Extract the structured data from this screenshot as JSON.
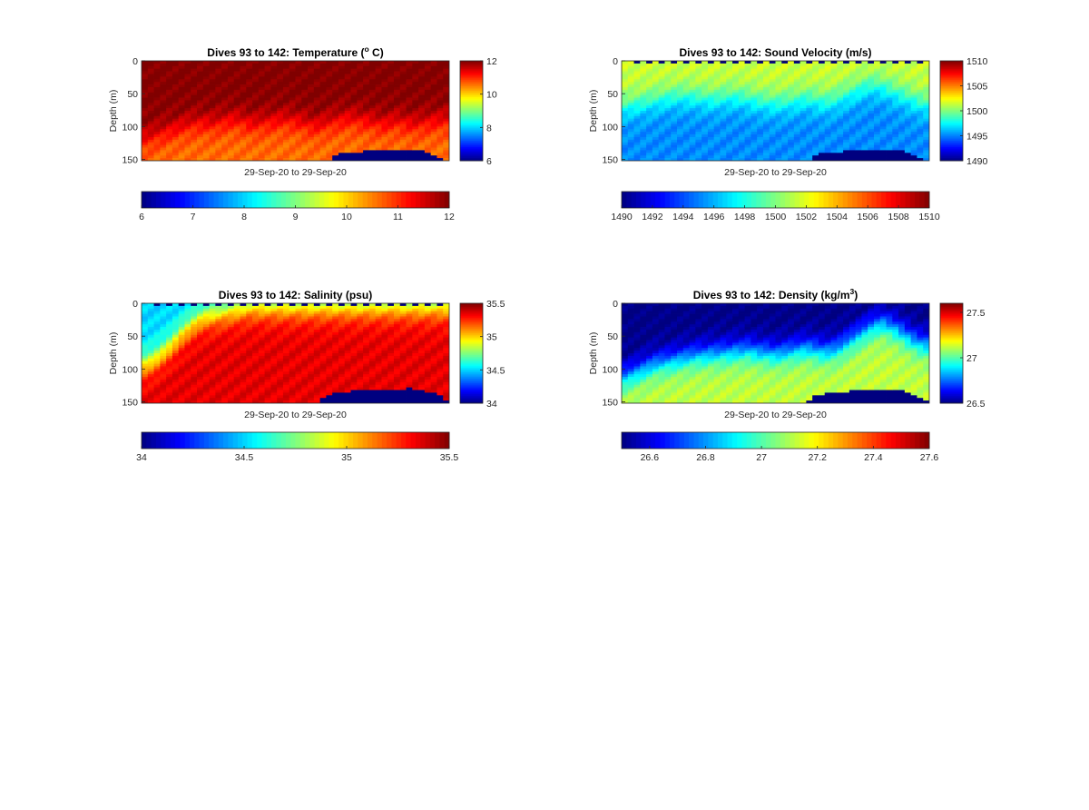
{
  "chart_data": [
    {
      "type": "heatmap",
      "title": "Dives 93 to 142: Temperature (",
      "title_sup": "o",
      "title_end": " C)",
      "xlabel": "29-Sep-20 to 29-Sep-20",
      "ylabel": "Depth (m)",
      "ylim": [
        0,
        152
      ],
      "yticks": [
        "0",
        "50",
        "100",
        "150"
      ],
      "ytick_values": [
        0,
        50,
        100,
        150
      ],
      "clim": [
        6,
        12
      ],
      "colorbar_right_ticks": [
        "6",
        "8",
        "10",
        "12"
      ],
      "colorbar_right_values": [
        6,
        8,
        10,
        12
      ],
      "colorbar_bottom_ticks": [
        "6",
        "7",
        "8",
        "9",
        "10",
        "11",
        "12"
      ],
      "colorbar_bottom_values": [
        6,
        7,
        8,
        9,
        10,
        11,
        12
      ],
      "colormap": "jet",
      "columns": 50,
      "surface_value": 12,
      "deep_value": 10.6,
      "thermocline_depth_m": [
        118,
        116,
        112,
        110,
        106,
        104,
        100,
        98,
        96,
        95,
        95,
        96,
        94,
        92,
        90,
        90,
        92,
        95,
        96,
        94,
        93,
        92,
        90,
        90,
        91,
        93,
        95,
        98,
        99,
        96,
        94,
        92,
        90,
        88,
        88,
        90,
        91,
        93,
        95,
        96,
        94,
        92,
        94,
        96,
        97,
        95,
        94,
        92,
        91,
        90
      ],
      "seafloor_depth_m": [
        200,
        200,
        200,
        200,
        200,
        200,
        200,
        200,
        200,
        200,
        200,
        200,
        200,
        200,
        200,
        200,
        200,
        200,
        200,
        200,
        200,
        200,
        200,
        200,
        200,
        200,
        200,
        200,
        200,
        200,
        200,
        145,
        142,
        140,
        139,
        139,
        138,
        138,
        137,
        137,
        137,
        137,
        136,
        136,
        137,
        138,
        140,
        143,
        147,
        152
      ],
      "surface_gap_columns": []
    },
    {
      "type": "heatmap",
      "title": "Dives 93 to 142: Sound Velocity (m/s)",
      "title_sup": "",
      "title_end": "",
      "xlabel": "29-Sep-20 to 29-Sep-20",
      "ylabel": "Depth (m)",
      "ylim": [
        0,
        152
      ],
      "yticks": [
        "0",
        "50",
        "100",
        "150"
      ],
      "ytick_values": [
        0,
        50,
        100,
        150
      ],
      "clim": [
        1490,
        1510
      ],
      "colorbar_right_ticks": [
        "1490",
        "1495",
        "1500",
        "1505",
        "1510"
      ],
      "colorbar_right_values": [
        1490,
        1495,
        1500,
        1505,
        1510
      ],
      "colorbar_bottom_ticks": [
        "1490",
        "1492",
        "1494",
        "1496",
        "1498",
        "1500",
        "1502",
        "1504",
        "1506",
        "1508",
        "1510"
      ],
      "colorbar_bottom_values": [
        1490,
        1492,
        1494,
        1496,
        1498,
        1500,
        1502,
        1504,
        1506,
        1508,
        1510
      ],
      "colormap": "jet",
      "columns": 50,
      "surface_value": 1501.5,
      "deep_value": 1495.2,
      "thermocline_depth_m": [
        70,
        68,
        66,
        64,
        62,
        60,
        58,
        56,
        55,
        54,
        54,
        55,
        56,
        57,
        58,
        58,
        56,
        55,
        55,
        56,
        58,
        60,
        62,
        63,
        64,
        64,
        63,
        62,
        60,
        58,
        58,
        60,
        62,
        62,
        60,
        56,
        52,
        48,
        44,
        40,
        38,
        38,
        40,
        44,
        48,
        52,
        56,
        60,
        64,
        66
      ],
      "seafloor_depth_m": [
        200,
        200,
        200,
        200,
        200,
        200,
        200,
        200,
        200,
        200,
        200,
        200,
        200,
        200,
        200,
        200,
        200,
        200,
        200,
        200,
        200,
        200,
        200,
        200,
        200,
        200,
        200,
        200,
        200,
        200,
        200,
        145,
        142,
        140,
        139,
        139,
        138,
        138,
        137,
        137,
        137,
        137,
        136,
        136,
        137,
        138,
        140,
        143,
        147,
        152
      ],
      "surface_gap_columns": [
        2,
        4,
        6,
        8,
        10,
        12,
        14,
        16,
        18,
        20,
        22,
        24,
        26,
        28,
        30,
        32,
        34,
        36,
        38,
        40,
        42,
        44,
        46,
        48
      ]
    },
    {
      "type": "heatmap",
      "title": "Dives 93 to 142: Salinity (psu)",
      "title_sup": "",
      "title_end": "",
      "xlabel": "29-Sep-20 to 29-Sep-20",
      "ylabel": "Depth (m)",
      "ylim": [
        0,
        152
      ],
      "yticks": [
        "0",
        "50",
        "100",
        "150"
      ],
      "ytick_values": [
        0,
        50,
        100,
        150
      ],
      "clim": [
        34,
        35.5
      ],
      "colorbar_right_ticks": [
        "34",
        "34.5",
        "35",
        "35.5"
      ],
      "colorbar_right_values": [
        34,
        34.5,
        35,
        35.5
      ],
      "colorbar_bottom_ticks": [
        "34",
        "34.5",
        "35",
        "35.5"
      ],
      "colorbar_bottom_values": [
        34,
        34.5,
        35,
        35.5
      ],
      "colormap": "jet",
      "columns": 50,
      "surface_value": 34.5,
      "deep_value": 35.35,
      "thermocline_depth_m": [
        92,
        88,
        82,
        74,
        66,
        56,
        46,
        38,
        30,
        24,
        20,
        18,
        16,
        14,
        12,
        10,
        8,
        6,
        6,
        6,
        6,
        6,
        6,
        6,
        6,
        6,
        6,
        6,
        6,
        6,
        6,
        6,
        6,
        6,
        6,
        6,
        6,
        6,
        6,
        6,
        6,
        6,
        6,
        6,
        6,
        6,
        6,
        6,
        6,
        6
      ],
      "seafloor_depth_m": [
        200,
        200,
        200,
        200,
        200,
        200,
        200,
        200,
        200,
        200,
        200,
        200,
        200,
        200,
        200,
        200,
        200,
        200,
        200,
        200,
        200,
        200,
        200,
        200,
        200,
        200,
        200,
        200,
        200,
        145,
        140,
        137,
        136,
        135,
        134,
        134,
        133,
        133,
        133,
        133,
        132,
        132,
        131,
        130,
        131,
        133,
        135,
        138,
        142,
        148
      ],
      "surface_gap_columns": [
        2,
        4,
        6,
        8,
        10,
        12,
        14,
        16,
        18,
        20,
        22,
        24,
        26,
        28,
        30,
        32,
        34,
        36,
        38,
        40,
        42,
        44,
        46,
        48
      ]
    },
    {
      "type": "heatmap",
      "title": "Dives 93 to 142: Density (kg/m",
      "title_sup": "3",
      "title_end": ")",
      "xlabel": "29-Sep-20 to 29-Sep-20",
      "ylabel": "Depth (m)",
      "ylim": [
        0,
        152
      ],
      "yticks": [
        "0",
        "50",
        "100",
        "150"
      ],
      "ytick_values": [
        0,
        50,
        100,
        150
      ],
      "clim": [
        26.5,
        27.6
      ],
      "colorbar_right_ticks": [
        "26.5",
        "27",
        "27.5"
      ],
      "colorbar_right_values": [
        26.5,
        27,
        27.5
      ],
      "colorbar_bottom_ticks": [
        "26.6",
        "26.8",
        "27",
        "27.2",
        "27.4",
        "27.6"
      ],
      "colorbar_bottom_values": [
        26.6,
        26.8,
        27,
        27.2,
        27.4,
        27.6
      ],
      "colormap": "jet",
      "columns": 50,
      "surface_value": 26.5,
      "deep_value": 27.12,
      "thermocline_depth_m": [
        112,
        108,
        104,
        100,
        96,
        92,
        90,
        88,
        86,
        84,
        82,
        80,
        78,
        78,
        76,
        76,
        74,
        74,
        72,
        72,
        70,
        72,
        74,
        74,
        76,
        76,
        74,
        72,
        70,
        68,
        68,
        70,
        72,
        72,
        70,
        66,
        60,
        54,
        48,
        42,
        36,
        32,
        30,
        34,
        38,
        44,
        50,
        56,
        60,
        62
      ],
      "seafloor_depth_m": [
        200,
        200,
        200,
        200,
        200,
        200,
        200,
        200,
        200,
        200,
        200,
        200,
        200,
        200,
        200,
        200,
        200,
        200,
        200,
        200,
        200,
        200,
        200,
        200,
        200,
        200,
        200,
        200,
        200,
        200,
        148,
        142,
        139,
        137,
        136,
        135,
        135,
        134,
        134,
        134,
        133,
        133,
        132,
        131,
        132,
        134,
        136,
        139,
        143,
        148
      ],
      "surface_gap_columns": []
    }
  ]
}
